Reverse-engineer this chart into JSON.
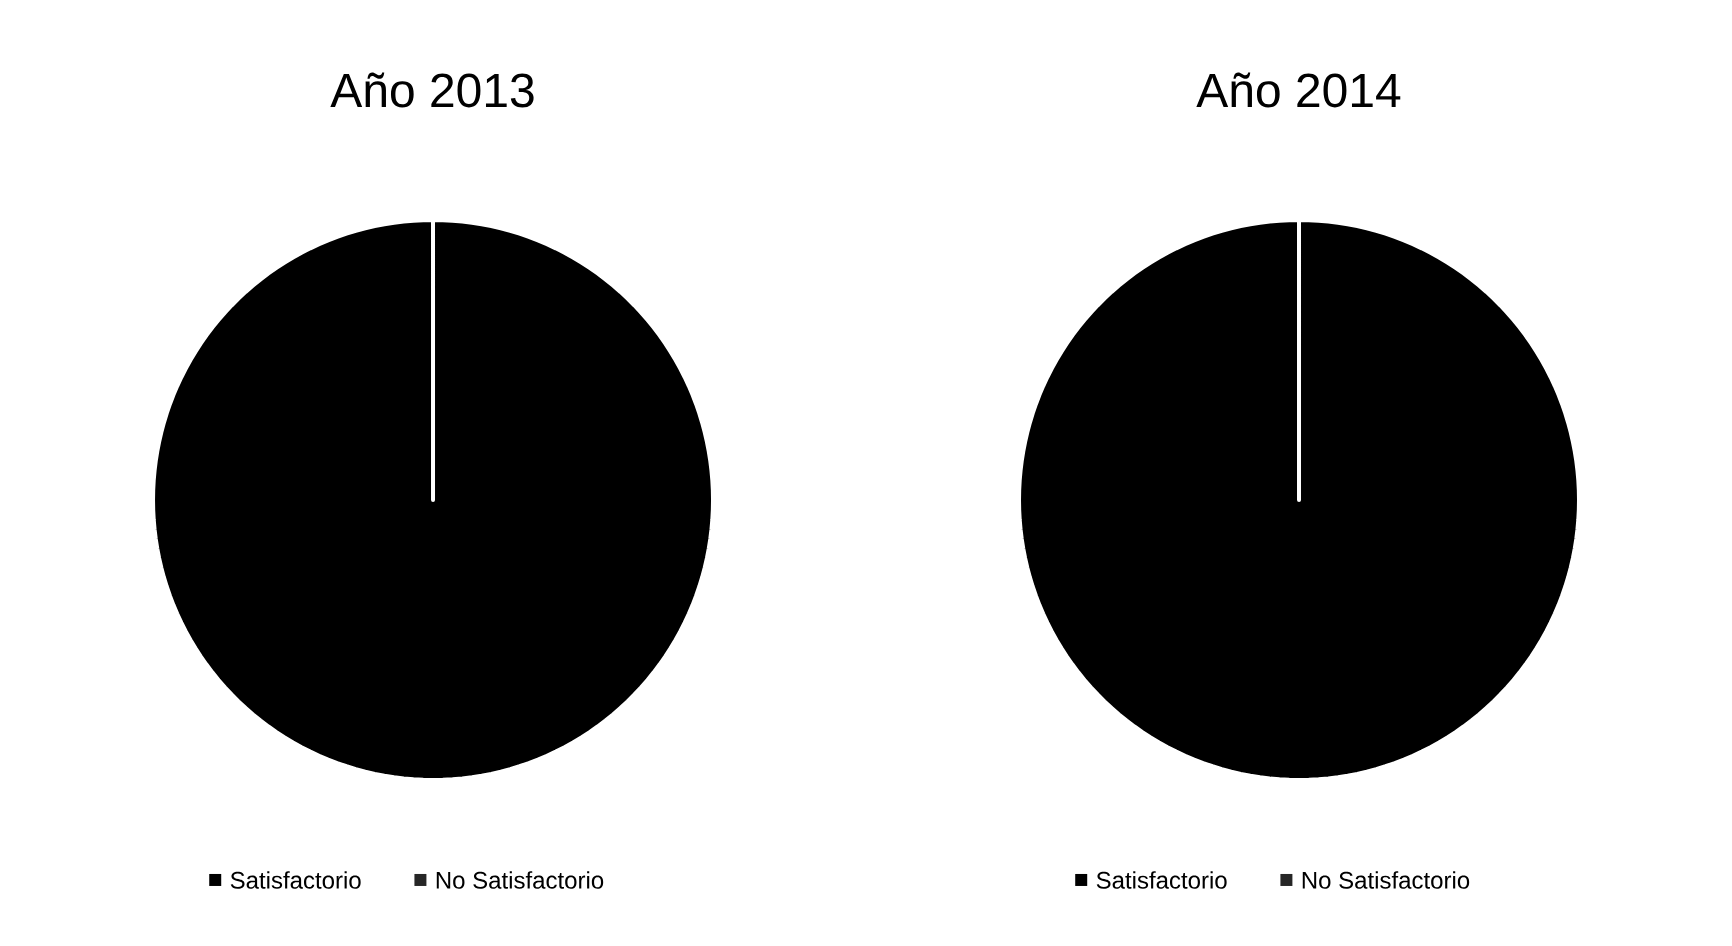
{
  "chart_data": [
    {
      "type": "pie",
      "title": "Año 2013",
      "categories": [
        "Satisfactorio",
        "No Satisfactorio"
      ],
      "values": [
        100,
        0
      ],
      "colors": [
        "#000000",
        "#262626"
      ],
      "legend": "bottom"
    },
    {
      "type": "pie",
      "title": "Año 2014",
      "categories": [
        "Satisfactorio",
        "No Satisfactorio"
      ],
      "values": [
        100,
        0
      ],
      "colors": [
        "#000000",
        "#262626"
      ],
      "legend": "bottom"
    }
  ]
}
